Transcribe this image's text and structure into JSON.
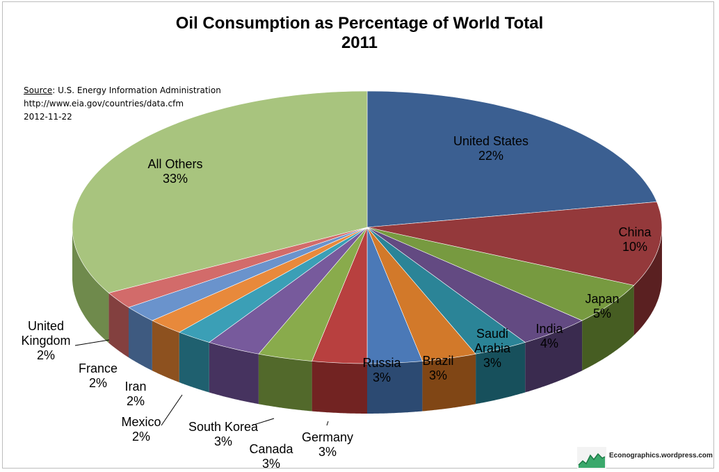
{
  "title_line1": "Oil Consumption as Percentage of World Total",
  "title_line2": "2011",
  "source": {
    "label": "Source",
    "text": ": U.S. Energy Information Administration",
    "url": "http://www.eia.gov/countries/data.cfm",
    "date": "2012-11-22"
  },
  "watermark": "Econographics.wordpress.com",
  "chart_data": {
    "type": "pie",
    "style": "3d",
    "start": "12 o'clock",
    "direction": "clockwise",
    "slices": [
      {
        "name": "United States",
        "label": [
          "United States",
          "22%"
        ],
        "value": 22,
        "color": "#3b5f91",
        "side": "#233a59"
      },
      {
        "name": "China",
        "label": [
          "China",
          "10%"
        ],
        "value": 10,
        "color": "#94393b",
        "side": "#5a2021"
      },
      {
        "name": "Japan",
        "label": [
          "Japan",
          "5%"
        ],
        "value": 5,
        "color": "#779a40",
        "side": "#465d22"
      },
      {
        "name": "India",
        "label": [
          "India",
          "4%"
        ],
        "value": 4,
        "color": "#634a82",
        "side": "#3a2b4f"
      },
      {
        "name": "Saudi Arabia",
        "label": [
          "Saudi",
          "Arabia",
          "3%"
        ],
        "value": 3,
        "color": "#2b8497",
        "side": "#17505c"
      },
      {
        "name": "Brazil",
        "label": [
          "Brazil",
          "3%"
        ],
        "value": 3,
        "color": "#d2792a",
        "side": "#804615"
      },
      {
        "name": "Russia",
        "label": [
          "Russia",
          "3%"
        ],
        "value": 3,
        "color": "#4b79b7",
        "side": "#2c4a72"
      },
      {
        "name": "Germany",
        "label": [
          "Germany",
          "3%"
        ],
        "value": 3,
        "color": "#b8403f",
        "side": "#722322"
      },
      {
        "name": "Canada",
        "label": [
          "Canada",
          "3%"
        ],
        "value": 3,
        "color": "#89ab4c",
        "side": "#52692b"
      },
      {
        "name": "South Korea",
        "label": [
          "South Korea",
          "3%"
        ],
        "value": 3,
        "color": "#775a9c",
        "side": "#46335f"
      },
      {
        "name": "Mexico",
        "label": [
          "Mexico",
          "2%"
        ],
        "value": 2,
        "color": "#3b9fb6",
        "side": "#1f606f"
      },
      {
        "name": "Iran",
        "label": [
          "Iran",
          "2%"
        ],
        "value": 2,
        "color": "#e8893b",
        "side": "#8d511f"
      },
      {
        "name": "France",
        "label": [
          "France",
          "2%"
        ],
        "value": 2,
        "color": "#6a93cc",
        "side": "#3e5a80"
      },
      {
        "name": "United Kingdom",
        "label": [
          "United",
          "Kingdom",
          "2%"
        ],
        "value": 2,
        "color": "#d26b6a",
        "side": "#83403f"
      },
      {
        "name": "All Others",
        "label": [
          "All Others",
          "33%"
        ],
        "value": 33,
        "color": "#a8c47e",
        "side": "#6f8a4c"
      }
    ]
  }
}
